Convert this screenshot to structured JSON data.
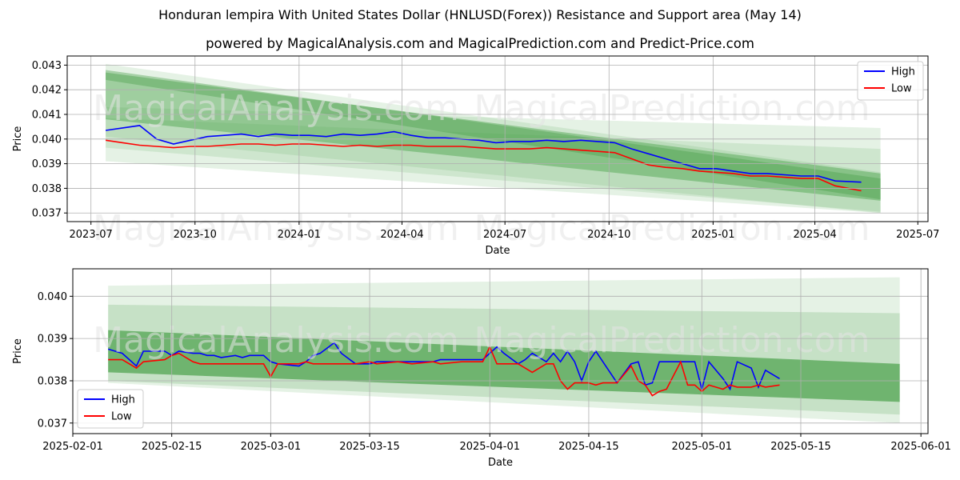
{
  "title": "Honduran lempira With United States Dollar (HNLUSD(Forex)) Resistance and Support area (May 14)",
  "subtitle": "powered by MagicalAnalysis.com and MagicalPrediction.com and Predict-Price.com",
  "watermark": [
    "MagicalAnalysis.com",
    "MagicalPrediction.com"
  ],
  "colors": {
    "high": "#0000ff",
    "low": "#ff0000",
    "band": "#4aa14a"
  },
  "chart_data": [
    {
      "type": "line",
      "xlabel": "Date",
      "ylabel": "Price",
      "grid": true,
      "legend": "top-right",
      "xlim": [
        "2023-06-10",
        "2025-07-10"
      ],
      "ylim": [
        0.03665,
        0.04337
      ],
      "x_ticks": [
        "2023-07",
        "2023-10",
        "2024-01",
        "2024-04",
        "2024-07",
        "2024-10",
        "2025-01",
        "2025-04",
        "2025-07"
      ],
      "x_tick_dates": [
        "2023-07-01",
        "2023-10-01",
        "2024-01-01",
        "2024-04-01",
        "2024-07-01",
        "2024-10-01",
        "2025-01-01",
        "2025-04-01",
        "2025-07-01"
      ],
      "y_ticks": [
        "0.037",
        "0.038",
        "0.039",
        "0.040",
        "0.041",
        "0.042",
        "0.043"
      ],
      "bands": [
        {
          "start": "2023-07-14",
          "end": "2025-05-29",
          "upper": [
            0.04305,
            0.03865
          ],
          "lower": [
            0.0391,
            0.037
          ],
          "opacity": 0.14
        },
        {
          "start": "2023-07-14",
          "end": "2025-05-29",
          "upper": [
            0.0413,
            0.04045
          ],
          "lower": [
            0.03965,
            0.03705
          ],
          "opacity": 0.14
        },
        {
          "start": "2023-07-14",
          "end": "2025-05-29",
          "upper": [
            0.0427,
            0.0386
          ],
          "lower": [
            0.0408,
            0.0375
          ],
          "opacity": 0.45
        },
        {
          "start": "2023-07-14",
          "end": "2025-05-29",
          "upper": [
            0.0428,
            0.0384
          ],
          "lower": [
            0.0424,
            0.03755
          ],
          "opacity": 0.4
        },
        {
          "start": "2023-07-14",
          "end": "2025-05-29",
          "upper": [
            0.04085,
            0.0396
          ],
          "lower": [
            0.0401,
            0.037
          ],
          "opacity": 0.14
        }
      ],
      "series": [
        {
          "name": "High",
          "x": [
            "2023-07-14",
            "2023-07-29",
            "2023-08-13",
            "2023-08-28",
            "2023-09-12",
            "2023-09-27",
            "2023-10-12",
            "2023-10-27",
            "2023-11-11",
            "2023-11-26",
            "2023-12-11",
            "2023-12-26",
            "2024-01-10",
            "2024-01-25",
            "2024-02-09",
            "2024-02-24",
            "2024-03-10",
            "2024-03-25",
            "2024-04-09",
            "2024-04-24",
            "2024-05-09",
            "2024-05-24",
            "2024-06-08",
            "2024-06-23",
            "2024-07-08",
            "2024-07-23",
            "2024-08-07",
            "2024-08-22",
            "2024-09-06",
            "2024-09-21",
            "2024-10-06",
            "2024-10-21",
            "2024-11-05",
            "2024-11-20",
            "2024-12-05",
            "2024-12-20",
            "2025-01-04",
            "2025-01-19",
            "2025-02-03",
            "2025-02-18",
            "2025-03-05",
            "2025-03-20",
            "2025-04-04",
            "2025-04-19",
            "2025-05-12"
          ],
          "values": [
            0.04035,
            0.04045,
            0.04055,
            0.04,
            0.0398,
            0.03995,
            0.0401,
            0.04015,
            0.0402,
            0.0401,
            0.0402,
            0.04015,
            0.04015,
            0.0401,
            0.0402,
            0.04015,
            0.0402,
            0.0403,
            0.04015,
            0.04005,
            0.04005,
            0.04,
            0.03995,
            0.03985,
            0.0399,
            0.0399,
            0.03995,
            0.0399,
            0.03995,
            0.0399,
            0.03985,
            0.0396,
            0.0394,
            0.0392,
            0.039,
            0.0388,
            0.0388,
            0.0387,
            0.0386,
            0.0386,
            0.03855,
            0.0385,
            0.0385,
            0.0383,
            0.03825
          ]
        },
        {
          "name": "Low",
          "x": [
            "2023-07-14",
            "2023-07-29",
            "2023-08-13",
            "2023-08-28",
            "2023-09-12",
            "2023-09-27",
            "2023-10-12",
            "2023-10-27",
            "2023-11-11",
            "2023-11-26",
            "2023-12-11",
            "2023-12-26",
            "2024-01-10",
            "2024-01-25",
            "2024-02-09",
            "2024-02-24",
            "2024-03-10",
            "2024-03-25",
            "2024-04-09",
            "2024-04-24",
            "2024-05-09",
            "2024-05-24",
            "2024-06-08",
            "2024-06-23",
            "2024-07-08",
            "2024-07-23",
            "2024-08-07",
            "2024-08-22",
            "2024-09-06",
            "2024-09-21",
            "2024-10-06",
            "2024-10-21",
            "2024-11-05",
            "2024-11-20",
            "2024-12-05",
            "2024-12-20",
            "2025-01-04",
            "2025-01-19",
            "2025-02-03",
            "2025-02-18",
            "2025-03-05",
            "2025-03-20",
            "2025-04-04",
            "2025-04-19",
            "2025-05-12"
          ],
          "values": [
            0.03995,
            0.03985,
            0.03975,
            0.0397,
            0.03965,
            0.0397,
            0.0397,
            0.03975,
            0.0398,
            0.0398,
            0.03975,
            0.0398,
            0.0398,
            0.03975,
            0.0397,
            0.03975,
            0.0397,
            0.03975,
            0.03975,
            0.0397,
            0.0397,
            0.0397,
            0.03965,
            0.0396,
            0.0396,
            0.0396,
            0.03965,
            0.0396,
            0.03955,
            0.0395,
            0.03945,
            0.0392,
            0.03895,
            0.03885,
            0.0388,
            0.0387,
            0.03865,
            0.0386,
            0.0385,
            0.0385,
            0.03845,
            0.0384,
            0.0384,
            0.0381,
            0.0379
          ]
        }
      ]
    },
    {
      "type": "line",
      "xlabel": "Date",
      "ylabel": "Price",
      "grid": true,
      "legend": "bottom-left",
      "xlim": [
        "2025-02-01",
        "2025-06-02"
      ],
      "ylim": [
        0.03675,
        0.04065
      ],
      "x_ticks": [
        "2025-02-01",
        "2025-02-15",
        "2025-03-01",
        "2025-03-15",
        "2025-04-01",
        "2025-04-15",
        "2025-05-01",
        "2025-05-15",
        "2025-06-01"
      ],
      "y_ticks": [
        "0.037",
        "0.038",
        "0.039",
        "0.040"
      ],
      "bands": [
        {
          "start": "2025-02-06",
          "end": "2025-05-29",
          "upper": [
            0.04025,
            0.04045
          ],
          "lower": [
            0.03795,
            0.037
          ],
          "opacity": 0.14
        },
        {
          "start": "2025-02-06",
          "end": "2025-05-29",
          "upper": [
            0.0398,
            0.0396
          ],
          "lower": [
            0.038,
            0.0372
          ],
          "opacity": 0.2
        },
        {
          "start": "2025-02-06",
          "end": "2025-05-29",
          "upper": [
            0.0392,
            0.0384
          ],
          "lower": [
            0.0382,
            0.0375
          ],
          "opacity": 0.7
        }
      ],
      "series": [
        {
          "name": "High",
          "x": [
            "2025-02-06",
            "2025-02-08",
            "2025-02-10",
            "2025-02-11",
            "2025-02-14",
            "2025-02-15",
            "2025-02-16",
            "2025-02-18",
            "2025-02-19",
            "2025-02-20",
            "2025-02-21",
            "2025-02-22",
            "2025-02-24",
            "2025-02-25",
            "2025-02-26",
            "2025-02-28",
            "2025-03-01",
            "2025-03-02",
            "2025-03-05",
            "2025-03-06",
            "2025-03-07",
            "2025-03-08",
            "2025-03-10",
            "2025-03-11",
            "2025-03-13",
            "2025-03-15",
            "2025-03-16",
            "2025-03-19",
            "2025-03-21",
            "2025-03-24",
            "2025-03-25",
            "2025-03-28",
            "2025-03-31",
            "2025-04-01",
            "2025-04-02",
            "2025-04-03",
            "2025-04-05",
            "2025-04-06",
            "2025-04-07",
            "2025-04-09",
            "2025-04-10",
            "2025-04-11",
            "2025-04-12",
            "2025-04-13",
            "2025-04-14",
            "2025-04-15",
            "2025-04-16",
            "2025-04-17",
            "2025-04-19",
            "2025-04-21",
            "2025-04-22",
            "2025-04-23",
            "2025-04-24",
            "2025-04-25",
            "2025-04-26",
            "2025-04-28",
            "2025-04-29",
            "2025-04-30",
            "2025-05-01",
            "2025-05-02",
            "2025-05-04",
            "2025-05-05",
            "2025-05-06",
            "2025-05-08",
            "2025-05-09",
            "2025-05-10",
            "2025-05-12"
          ],
          "values": [
            0.03875,
            0.03865,
            0.03835,
            0.0387,
            0.0387,
            0.0386,
            0.0387,
            0.03865,
            0.03865,
            0.0386,
            0.0386,
            0.03855,
            0.0386,
            0.03855,
            0.0386,
            0.0386,
            0.03845,
            0.0384,
            0.03835,
            0.03845,
            0.0386,
            0.03865,
            0.0389,
            0.03865,
            0.0384,
            0.0384,
            0.03845,
            0.03845,
            0.03845,
            0.03845,
            0.0385,
            0.0385,
            0.0385,
            0.03865,
            0.0388,
            0.03865,
            0.0384,
            0.0385,
            0.03865,
            0.03845,
            0.03865,
            0.03845,
            0.0387,
            0.03845,
            0.038,
            0.03845,
            0.0387,
            0.03845,
            0.03795,
            0.0384,
            0.03845,
            0.0379,
            0.03795,
            0.03845,
            0.03845,
            0.03845,
            0.03845,
            0.03845,
            0.0378,
            0.03845,
            0.03805,
            0.0378,
            0.03845,
            0.0383,
            0.03785,
            0.03825,
            0.03805
          ]
        },
        {
          "name": "Low",
          "x": [
            "2025-02-06",
            "2025-02-08",
            "2025-02-10",
            "2025-02-11",
            "2025-02-14",
            "2025-02-15",
            "2025-02-16",
            "2025-02-18",
            "2025-02-19",
            "2025-02-20",
            "2025-02-21",
            "2025-02-22",
            "2025-02-24",
            "2025-02-25",
            "2025-02-26",
            "2025-02-28",
            "2025-03-01",
            "2025-03-02",
            "2025-03-05",
            "2025-03-06",
            "2025-03-07",
            "2025-03-08",
            "2025-03-10",
            "2025-03-11",
            "2025-03-13",
            "2025-03-15",
            "2025-03-16",
            "2025-03-19",
            "2025-03-21",
            "2025-03-24",
            "2025-03-25",
            "2025-03-28",
            "2025-03-31",
            "2025-04-01",
            "2025-04-02",
            "2025-04-03",
            "2025-04-05",
            "2025-04-06",
            "2025-04-07",
            "2025-04-09",
            "2025-04-10",
            "2025-04-11",
            "2025-04-12",
            "2025-04-13",
            "2025-04-14",
            "2025-04-15",
            "2025-04-16",
            "2025-04-17",
            "2025-04-19",
            "2025-04-21",
            "2025-04-22",
            "2025-04-23",
            "2025-04-24",
            "2025-04-25",
            "2025-04-26",
            "2025-04-28",
            "2025-04-29",
            "2025-04-30",
            "2025-05-01",
            "2025-05-02",
            "2025-05-04",
            "2025-05-05",
            "2025-05-06",
            "2025-05-08",
            "2025-05-09",
            "2025-05-10",
            "2025-05-12"
          ],
          "values": [
            0.0385,
            0.0385,
            0.0383,
            0.03845,
            0.0385,
            0.0386,
            0.03865,
            0.03845,
            0.0384,
            0.0384,
            0.0384,
            0.0384,
            0.0384,
            0.0384,
            0.0384,
            0.0384,
            0.0381,
            0.0384,
            0.0384,
            0.03845,
            0.0384,
            0.0384,
            0.0384,
            0.0384,
            0.0384,
            0.03845,
            0.0384,
            0.03845,
            0.0384,
            0.03845,
            0.0384,
            0.03845,
            0.03845,
            0.0388,
            0.0384,
            0.0384,
            0.0384,
            0.0383,
            0.0382,
            0.0384,
            0.0384,
            0.038,
            0.0378,
            0.03795,
            0.03795,
            0.03795,
            0.0379,
            0.03795,
            0.03795,
            0.03835,
            0.038,
            0.0379,
            0.03765,
            0.03775,
            0.0378,
            0.03845,
            0.0379,
            0.0379,
            0.03775,
            0.0379,
            0.0378,
            0.0379,
            0.03785,
            0.03785,
            0.0379,
            0.03785,
            0.0379
          ]
        }
      ]
    }
  ]
}
